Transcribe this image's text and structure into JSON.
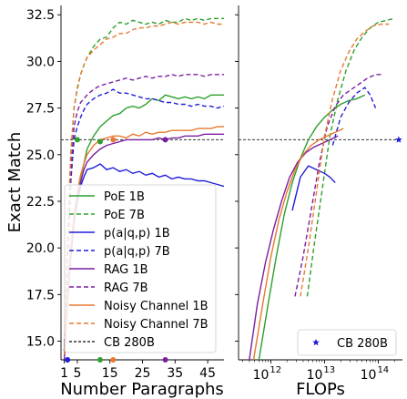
{
  "chart_data": [
    {
      "type": "line",
      "panel": "left",
      "xlabel": "Number Paragraphs",
      "ylabel": "Exact Match",
      "xlim": [
        0,
        50
      ],
      "ylim": [
        14,
        33
      ],
      "xticks": [
        1,
        5,
        15,
        25,
        35,
        45
      ],
      "xtick_labels": [
        "1",
        "5",
        "15",
        "25",
        "35",
        "45"
      ],
      "yticks": [
        15.0,
        17.5,
        20.0,
        22.5,
        25.0,
        27.5,
        30.0,
        32.5
      ],
      "ytick_labels": [
        "15.0",
        "17.5",
        "20.0",
        "22.5",
        "25.0",
        "27.5",
        "30.0",
        "32.5"
      ],
      "reference_line": {
        "name": "CB 280B",
        "y": 25.8,
        "color": "#333333"
      },
      "legend": {
        "position": "lower-left"
      },
      "series": [
        {
          "name": "PoE 1B",
          "color": "#2ca02c",
          "dash": "solid",
          "x": [
            1,
            2,
            3,
            4,
            5,
            6,
            7,
            8,
            10,
            12,
            14,
            16,
            18,
            20,
            22,
            24,
            26,
            28,
            30,
            32,
            34,
            36,
            38,
            40,
            42,
            44,
            46,
            48,
            50
          ],
          "y": [
            14.5,
            17.5,
            20.0,
            21.8,
            22.8,
            23.8,
            24.5,
            25.3,
            26.0,
            26.5,
            26.8,
            27.1,
            27.2,
            27.5,
            27.6,
            27.5,
            27.7,
            28.0,
            27.9,
            28.2,
            28.1,
            28.0,
            28.1,
            28.0,
            28.1,
            28.0,
            28.2,
            28.2,
            28.2
          ]
        },
        {
          "name": "PoE 7B",
          "color": "#2ca02c",
          "dash": "dashed",
          "x": [
            1,
            2,
            3,
            4,
            5,
            6,
            7,
            8,
            10,
            12,
            14,
            16,
            18,
            20,
            22,
            24,
            26,
            28,
            30,
            32,
            34,
            36,
            38,
            40,
            42,
            44,
            46,
            48,
            50
          ],
          "y": [
            14.5,
            20.5,
            25.0,
            27.5,
            28.5,
            29.3,
            29.8,
            30.2,
            30.8,
            31.2,
            31.3,
            31.8,
            32.1,
            32.0,
            32.2,
            32.1,
            32.0,
            32.1,
            32.0,
            32.2,
            32.1,
            32.1,
            32.3,
            32.2,
            32.3,
            32.2,
            32.3,
            32.3,
            32.3
          ]
        },
        {
          "name": "p(a|q,p) 1B",
          "color": "#1f1fd8",
          "dash": "solid",
          "x": [
            1,
            2,
            3,
            4,
            5,
            6,
            7,
            8,
            10,
            12,
            14,
            16,
            18,
            20,
            22,
            24,
            26,
            28,
            30,
            32,
            34,
            36,
            38,
            40,
            42,
            44,
            46,
            48,
            50
          ],
          "y": [
            14.5,
            17.5,
            19.8,
            21.5,
            22.5,
            23.3,
            23.8,
            24.2,
            24.3,
            24.5,
            24.2,
            24.3,
            24.1,
            24.2,
            24.0,
            24.1,
            23.9,
            24.0,
            23.8,
            23.9,
            23.7,
            23.8,
            23.7,
            23.7,
            23.6,
            23.6,
            23.5,
            23.4,
            23.3
          ]
        },
        {
          "name": "p(a|q,p) 7B",
          "color": "#1f1fd8",
          "dash": "dashed",
          "x": [
            1,
            2,
            3,
            4,
            5,
            6,
            7,
            8,
            10,
            12,
            14,
            16,
            18,
            20,
            22,
            24,
            26,
            28,
            30,
            32,
            34,
            36,
            38,
            40,
            42,
            44,
            46,
            48,
            50
          ],
          "y": [
            14.5,
            19.5,
            23.5,
            25.8,
            26.5,
            27.0,
            27.4,
            27.7,
            28.0,
            28.2,
            28.3,
            28.5,
            28.3,
            28.3,
            28.2,
            28.1,
            28.0,
            28.0,
            27.9,
            27.8,
            27.8,
            27.7,
            27.7,
            27.6,
            27.7,
            27.6,
            27.6,
            27.5,
            27.6
          ]
        },
        {
          "name": "RAG 1B",
          "color": "#7b1fa2",
          "dash": "solid",
          "x": [
            1,
            2,
            3,
            4,
            5,
            6,
            7,
            8,
            10,
            12,
            14,
            16,
            18,
            20,
            22,
            24,
            26,
            28,
            30,
            32,
            34,
            36,
            38,
            40,
            42,
            44,
            46,
            48,
            50
          ],
          "y": [
            14.0,
            17.0,
            19.5,
            21.3,
            22.5,
            23.5,
            24.2,
            24.6,
            25.0,
            25.3,
            25.5,
            25.6,
            25.7,
            25.8,
            25.8,
            25.8,
            25.8,
            25.8,
            25.9,
            25.8,
            25.9,
            25.9,
            26.0,
            26.0,
            26.0,
            26.1,
            26.1,
            26.1,
            26.1
          ]
        },
        {
          "name": "RAG 7B",
          "color": "#7b1fa2",
          "dash": "dashed",
          "x": [
            1,
            2,
            3,
            4,
            5,
            6,
            7,
            8,
            10,
            12,
            14,
            16,
            18,
            20,
            22,
            24,
            26,
            28,
            30,
            32,
            34,
            36,
            38,
            40,
            42,
            44,
            46,
            48,
            50
          ],
          "y": [
            14.5,
            19.5,
            24.0,
            26.5,
            27.3,
            27.8,
            28.0,
            28.2,
            28.5,
            28.7,
            28.8,
            28.9,
            29.0,
            29.1,
            29.0,
            29.1,
            29.2,
            29.1,
            29.2,
            29.2,
            29.3,
            29.2,
            29.3,
            29.3,
            29.3,
            29.2,
            29.3,
            29.3,
            29.3
          ]
        },
        {
          "name": "Noisy Channel 1B",
          "color": "#e8792f",
          "dash": "solid",
          "x": [
            1,
            2,
            3,
            4,
            5,
            6,
            7,
            8,
            10,
            12,
            14,
            16,
            18,
            20,
            22,
            24,
            26,
            28,
            30,
            32,
            34,
            36,
            38,
            40,
            42,
            44,
            46,
            48,
            50
          ],
          "y": [
            14.3,
            17.5,
            20.0,
            21.8,
            23.0,
            23.9,
            24.5,
            25.0,
            25.5,
            25.8,
            25.9,
            26.0,
            26.0,
            25.9,
            26.1,
            26.0,
            26.2,
            26.1,
            26.2,
            26.2,
            26.3,
            26.3,
            26.3,
            26.3,
            26.4,
            26.4,
            26.4,
            26.5,
            26.5
          ]
        },
        {
          "name": "Noisy Channel 7B",
          "color": "#e8792f",
          "dash": "dashed",
          "x": [
            1,
            2,
            3,
            4,
            5,
            6,
            7,
            8,
            10,
            12,
            14,
            16,
            18,
            20,
            22,
            24,
            26,
            28,
            30,
            32,
            34,
            36,
            38,
            40,
            42,
            44,
            46,
            48,
            50
          ],
          "y": [
            14.5,
            20.5,
            25.0,
            27.5,
            28.6,
            29.3,
            29.8,
            30.2,
            30.6,
            30.9,
            31.2,
            31.3,
            31.5,
            31.5,
            31.7,
            31.8,
            31.8,
            31.9,
            31.9,
            32.0,
            32.1,
            32.0,
            32.1,
            32.1,
            32.1,
            32.0,
            32.1,
            32.0,
            32.0
          ]
        }
      ],
      "markers": [
        {
          "x": 5,
          "y": 25.8,
          "color": "#2ca02c"
        },
        {
          "x": 12,
          "y": 25.7,
          "color": "#2ca02c"
        },
        {
          "x": 16,
          "y": 25.8,
          "color": "#e8792f"
        },
        {
          "x": 32,
          "y": 25.8,
          "color": "#7b1fa2"
        },
        {
          "x": 2,
          "y": 14.0,
          "color": "#1f1fd8"
        },
        {
          "x": 12,
          "y": 14.0,
          "color": "#2ca02c"
        },
        {
          "x": 16,
          "y": 14.0,
          "color": "#e8792f"
        },
        {
          "x": 32,
          "y": 14.0,
          "color": "#7b1fa2"
        }
      ]
    },
    {
      "type": "line",
      "panel": "right",
      "xlabel": "FLOPs",
      "x_scale": "log",
      "xlim_log10": [
        11.4,
        14.45
      ],
      "ylim": [
        14,
        33
      ],
      "xticks_log10": [
        12,
        13,
        14
      ],
      "xtick_base": "10",
      "xtick_exponents": [
        "12",
        "13",
        "14"
      ],
      "reference_line": {
        "name": "CB 280B",
        "y": 25.8,
        "color": "#333333"
      },
      "reference_point": {
        "name": "CB 280B",
        "x_log10": 14.38,
        "y": 25.8,
        "color": "#1f1fd8",
        "marker": "star"
      },
      "legend": {
        "position": "lower-right",
        "entries": [
          "CB 280B"
        ]
      },
      "series": [
        {
          "name": "PoE 1B",
          "color": "#2ca02c",
          "dash": "solid",
          "x_log10": [
            11.78,
            11.95,
            12.1,
            12.25,
            12.4,
            12.55,
            12.7,
            12.85,
            13.0,
            13.15,
            13.3,
            13.45,
            13.6,
            13.75
          ],
          "y": [
            14.0,
            17.0,
            19.5,
            21.8,
            23.5,
            24.8,
            25.8,
            26.5,
            27.0,
            27.4,
            27.7,
            27.9,
            28.0,
            28.2
          ]
        },
        {
          "name": "PoE 7B",
          "color": "#2ca02c",
          "dash": "dashed",
          "x_log10": [
            12.68,
            12.8,
            12.95,
            13.1,
            13.25,
            13.4,
            13.55,
            13.7,
            13.85,
            14.0,
            14.15,
            14.3
          ],
          "y": [
            17.4,
            20.0,
            23.0,
            26.0,
            28.0,
            29.5,
            30.6,
            31.3,
            31.8,
            32.1,
            32.2,
            32.3
          ]
        },
        {
          "name": "p(a|q,p) 1B",
          "color": "#1f1fd8",
          "dash": "solid",
          "x_log10": [
            12.4,
            12.55,
            12.7,
            12.85,
            13.0,
            13.1,
            13.2
          ],
          "y": [
            22.0,
            23.8,
            24.4,
            24.2,
            24.0,
            23.8,
            23.5
          ]
        },
        {
          "name": "p(a|q,p) 7B",
          "color": "#1f1fd8",
          "dash": "dashed",
          "x_log10": [
            13.15,
            13.3,
            13.45,
            13.6,
            13.75,
            13.85,
            13.95
          ],
          "y": [
            25.5,
            27.0,
            27.8,
            28.3,
            28.6,
            28.2,
            27.5
          ]
        },
        {
          "name": "RAG 1B",
          "color": "#7b1fa2",
          "dash": "solid",
          "x_log10": [
            11.6,
            11.75,
            11.9,
            12.05,
            12.2,
            12.35,
            12.5,
            12.65,
            12.8,
            12.95,
            13.1,
            13.25
          ],
          "y": [
            14.0,
            17.0,
            19.2,
            21.0,
            22.5,
            23.8,
            24.6,
            25.1,
            25.4,
            25.6,
            25.8,
            26.0
          ]
        },
        {
          "name": "RAG 7B",
          "color": "#7b1fa2",
          "dash": "dashed",
          "x_log10": [
            12.45,
            12.6,
            12.75,
            12.9,
            13.05,
            13.2,
            13.35,
            13.5,
            13.65,
            13.8,
            13.95,
            14.05
          ],
          "y": [
            17.4,
            19.5,
            22.0,
            24.5,
            26.5,
            27.6,
            28.2,
            28.5,
            28.8,
            29.1,
            29.3,
            29.3
          ]
        },
        {
          "name": "Noisy Channel 1B",
          "color": "#e8792f",
          "dash": "solid",
          "x_log10": [
            11.68,
            11.85,
            12.0,
            12.15,
            12.3,
            12.45,
            12.6,
            12.75,
            12.9,
            13.05,
            13.2,
            13.35
          ],
          "y": [
            14.0,
            17.0,
            19.5,
            21.5,
            23.0,
            24.2,
            25.0,
            25.5,
            25.8,
            26.0,
            26.2,
            26.4
          ]
        },
        {
          "name": "Noisy Channel 7B",
          "color": "#e8792f",
          "dash": "dashed",
          "x_log10": [
            12.55,
            12.7,
            12.85,
            13.0,
            13.15,
            13.3,
            13.45,
            13.6,
            13.75,
            13.9,
            14.05,
            14.2
          ],
          "y": [
            17.4,
            20.0,
            23.0,
            26.0,
            28.0,
            29.5,
            30.5,
            31.2,
            31.6,
            31.9,
            32.0,
            32.0
          ]
        }
      ]
    }
  ]
}
